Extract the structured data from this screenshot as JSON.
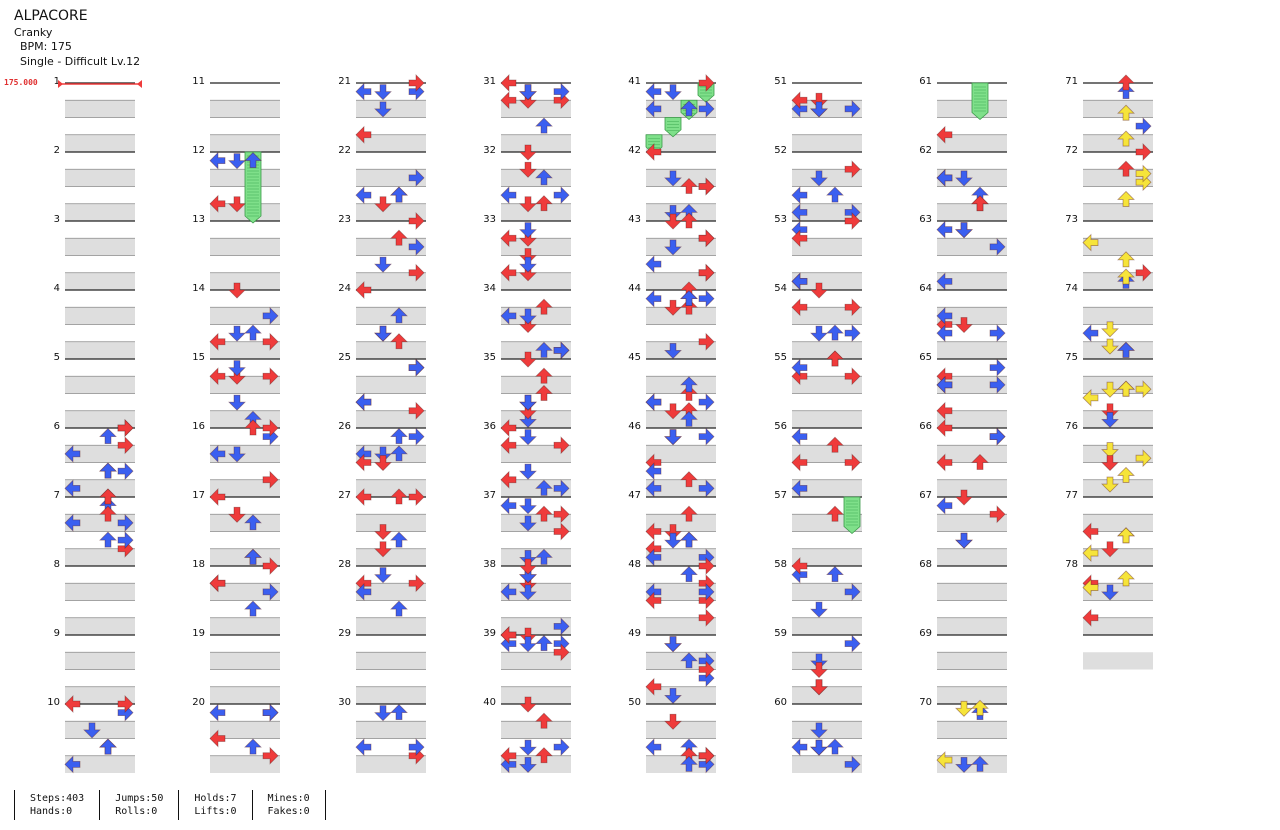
{
  "song": {
    "title": "ALPACORE",
    "artist": "Cranky",
    "bpm_label": "BPM: 175",
    "difficulty": "Single - Difficult Lv.12"
  },
  "bpm_marker": "175.000",
  "colors": {
    "red": "#ef3b3b",
    "blue": "#3b5ff0",
    "yellow": "#f6e43a",
    "hold": "#7fe08a",
    "stripe": "#dedede"
  },
  "measures": {
    "total_shown": 78,
    "per_column": 10,
    "columns": 8,
    "labels": [
      "1",
      "2",
      "3",
      "4",
      "5",
      "6",
      "7",
      "8",
      "9",
      "10",
      "11",
      "12",
      "13",
      "14",
      "15",
      "16",
      "17",
      "18",
      "19",
      "20",
      "21",
      "22",
      "23",
      "24",
      "25",
      "26",
      "27",
      "28",
      "29",
      "30",
      "31",
      "32",
      "33",
      "34",
      "35",
      "36",
      "37",
      "38",
      "39",
      "40",
      "41",
      "42",
      "43",
      "44",
      "45",
      "46",
      "47",
      "48",
      "49",
      "50",
      "51",
      "52",
      "53",
      "54",
      "55",
      "56",
      "57",
      "58",
      "59",
      "60",
      "61",
      "62",
      "63",
      "64",
      "65",
      "66",
      "67",
      "68",
      "69",
      "70",
      "71",
      "72",
      "73",
      "74",
      "75",
      "76",
      "77",
      "78"
    ]
  },
  "holds": [
    {
      "measure": 12,
      "lane": 2,
      "length_beats": 4
    },
    {
      "measure": 41,
      "lane": 0,
      "start_beat": 3,
      "length_beats": 1
    },
    {
      "measure": 41,
      "lane": 1,
      "start_beat": 2,
      "length_beats": 1
    },
    {
      "measure": 41,
      "lane": 2,
      "start_beat": 1,
      "length_beats": 1
    },
    {
      "measure": 41,
      "lane": 3,
      "start_beat": 0,
      "length_beats": 1
    },
    {
      "measure": 57,
      "lane": 3,
      "length_beats": 2
    },
    {
      "measure": 61,
      "lane": 2,
      "length_beats": 2
    }
  ],
  "stats": [
    {
      "a": "Steps:403",
      "b": "Hands:0"
    },
    {
      "a": "Jumps:50",
      "b": "Rolls:0"
    },
    {
      "a": "Holds:7",
      "b": "Lifts:0"
    },
    {
      "a": "Mines:0",
      "b": "Fakes:0"
    }
  ]
}
